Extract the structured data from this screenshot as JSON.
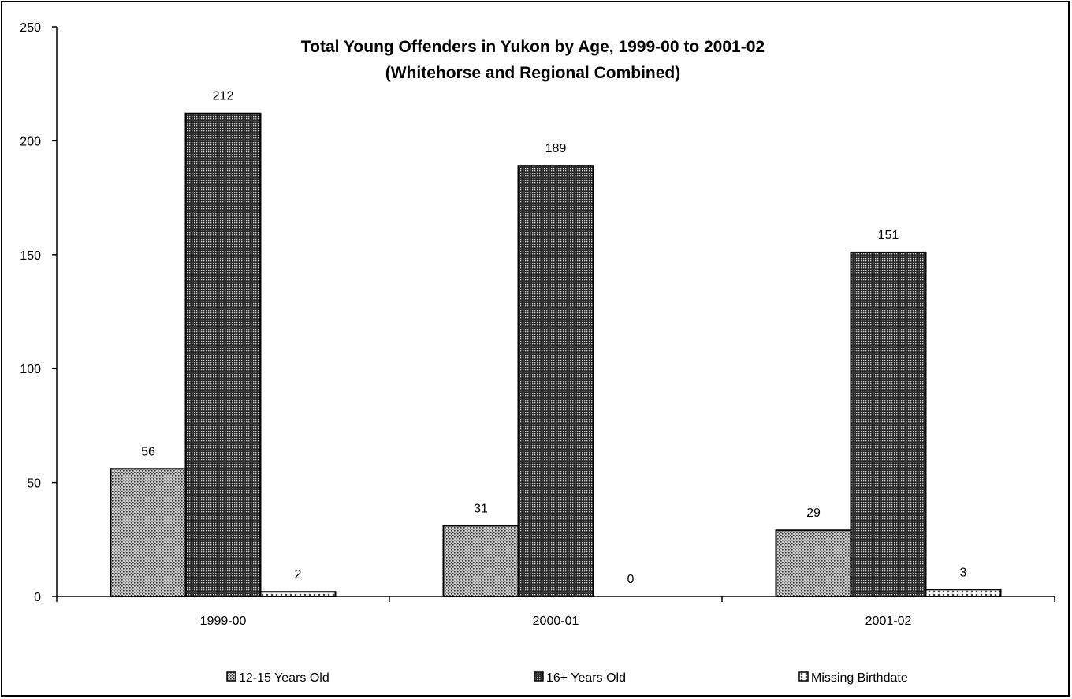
{
  "chart_data": {
    "type": "bar",
    "title": "Total Young Offenders in Yukon by Age, 1999-00 to 2001-02",
    "subtitle": "(Whitehorse and Regional Combined)",
    "categories": [
      "1999-00",
      "2000-01",
      "2001-02"
    ],
    "series": [
      {
        "name": "12-15 Years Old",
        "values": [
          56,
          31,
          29
        ],
        "color": "#b0b0b0"
      },
      {
        "name": "16+ Years Old",
        "values": [
          212,
          189,
          151
        ],
        "color": "#555555"
      },
      {
        "name": "Missing Birthdate",
        "values": [
          2,
          0,
          3
        ],
        "color": "#d8d8d8"
      }
    ],
    "ylim": [
      0,
      250
    ],
    "yticks": [
      0,
      50,
      100,
      150,
      200,
      250
    ],
    "data_labels": true,
    "grid": false,
    "legend": "bottom"
  }
}
